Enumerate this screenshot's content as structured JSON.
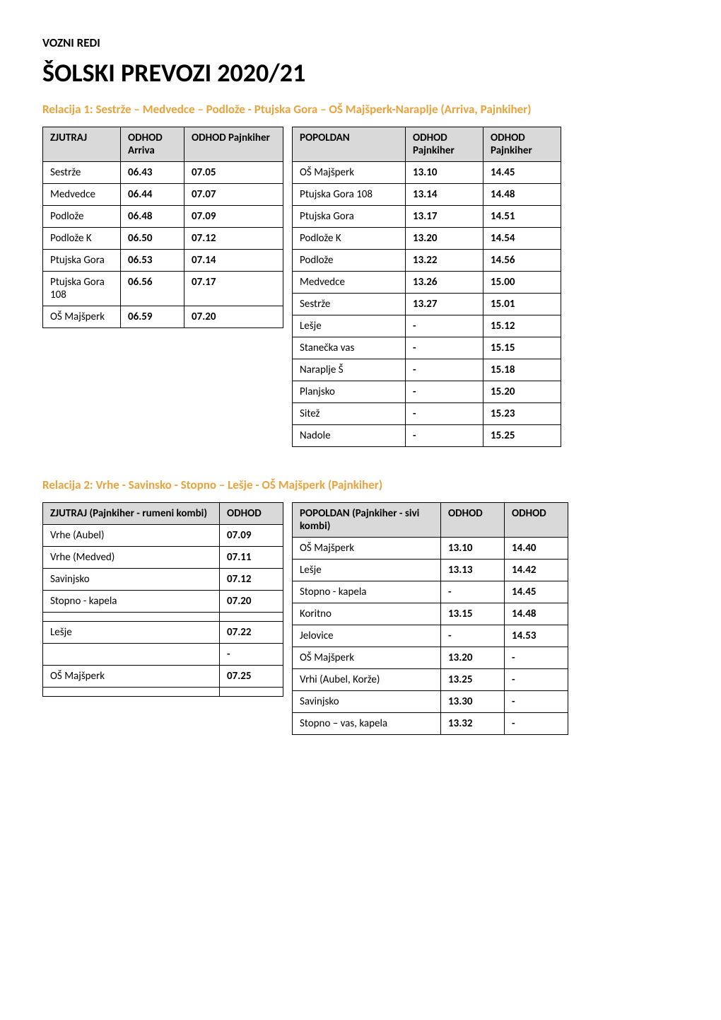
{
  "section_label": "VOZNI REDI",
  "page_title": "ŠOLSKI PREVOZI 2020/21",
  "heading_color": "#e8a33d",
  "rel1": {
    "heading": "Relacija 1: Sestrže – Medvedce – Podlože - Ptujska Gora – OŠ Majšperk-Naraplje (Arriva, Pajnkiher)",
    "left": {
      "headers": [
        "ZJUTRAJ",
        "ODHOD Arriva",
        "ODHOD Pajnkiher"
      ],
      "rows": [
        [
          "Sestrže",
          "06.43",
          "07.05"
        ],
        [
          "Medvedce",
          "06.44",
          "07.07"
        ],
        [
          "Podlože",
          "06.48",
          "07.09"
        ],
        [
          "Podlože K",
          "06.50",
          "07.12"
        ],
        [
          "Ptujska Gora",
          "06.53",
          "07.14"
        ],
        [
          "Ptujska Gora 108",
          "06.56",
          "07.17"
        ],
        [
          "OŠ Majšperk",
          "06.59",
          "07.20"
        ]
      ],
      "col_widths": [
        "110px",
        "90px",
        "140px"
      ]
    },
    "right": {
      "headers": [
        "POPOLDAN",
        "ODHOD Pajnkiher",
        "ODHOD Pajnkiher"
      ],
      "rows": [
        [
          "OŠ Majšperk",
          "13.10",
          "14.45"
        ],
        [
          "Ptujska Gora 108",
          "13.14",
          "14.48"
        ],
        [
          "Ptujska Gora",
          "13.17",
          "14.51"
        ],
        [
          "Podlože K",
          "13.20",
          "14.54"
        ],
        [
          "Podlože",
          "13.22",
          "14.56"
        ],
        [
          "Medvedce",
          "13.26",
          "15.00"
        ],
        [
          "Sestrže",
          "13.27",
          "15.01"
        ],
        [
          "Lešje",
          "-",
          "15.12"
        ],
        [
          "Stanečka vas",
          "-",
          "15.15"
        ],
        [
          "Naraplje Š",
          "-",
          "15.18"
        ],
        [
          "Planjsko",
          "-",
          "15.20"
        ],
        [
          "Sitež",
          "-",
          "15.23"
        ],
        [
          "Nadole",
          "-",
          "15.25"
        ]
      ],
      "col_widths": [
        "160px",
        "110px",
        "110px"
      ]
    }
  },
  "rel2": {
    "heading": "Relacija 2: Vrhe - Savinsko - Stopno – Lešje - OŠ Majšperk (Pajnkiher)",
    "left": {
      "headers": [
        "ZJUTRAJ (Pajnkiher - rumeni kombi)",
        "ODHOD"
      ],
      "rows": [
        [
          "Vrhe (Aubel)",
          "07.09"
        ],
        [
          "Vrhe (Medved)",
          "07.11"
        ],
        [
          "Savinjsko",
          "07.12"
        ],
        [
          "Stopno - kapela",
          "07.20"
        ],
        [
          "",
          ""
        ],
        [
          "Lešje",
          "07.22"
        ],
        [
          "",
          "-"
        ],
        [
          "OŠ Majšperk",
          "07.25"
        ],
        [
          "",
          ""
        ]
      ],
      "col_widths": [
        "250px",
        "90px"
      ]
    },
    "right": {
      "headers": [
        "POPOLDAN (Pajnkiher - sivi kombi)",
        "ODHOD",
        "ODHOD"
      ],
      "rows": [
        [
          "OŠ Majšperk",
          "13.10",
          "14.40"
        ],
        [
          "Lešje",
          "13.13",
          "14.42"
        ],
        [
          "Stopno - kapela",
          "-",
          "14.45"
        ],
        [
          "Koritno",
          "13.15",
          "14.48"
        ],
        [
          "Jelovice",
          "-",
          "14.53"
        ],
        [
          "OŠ Majšperk",
          "13.20",
          "-"
        ],
        [
          "Vrhi (Aubel, Korže)",
          "13.25",
          "-"
        ],
        [
          "Savinjsko",
          "13.30",
          "-"
        ],
        [
          "Stopno – vas, kapela",
          "13.32",
          "-"
        ]
      ],
      "col_widths": [
        "210px",
        "90px",
        "90px"
      ]
    }
  }
}
